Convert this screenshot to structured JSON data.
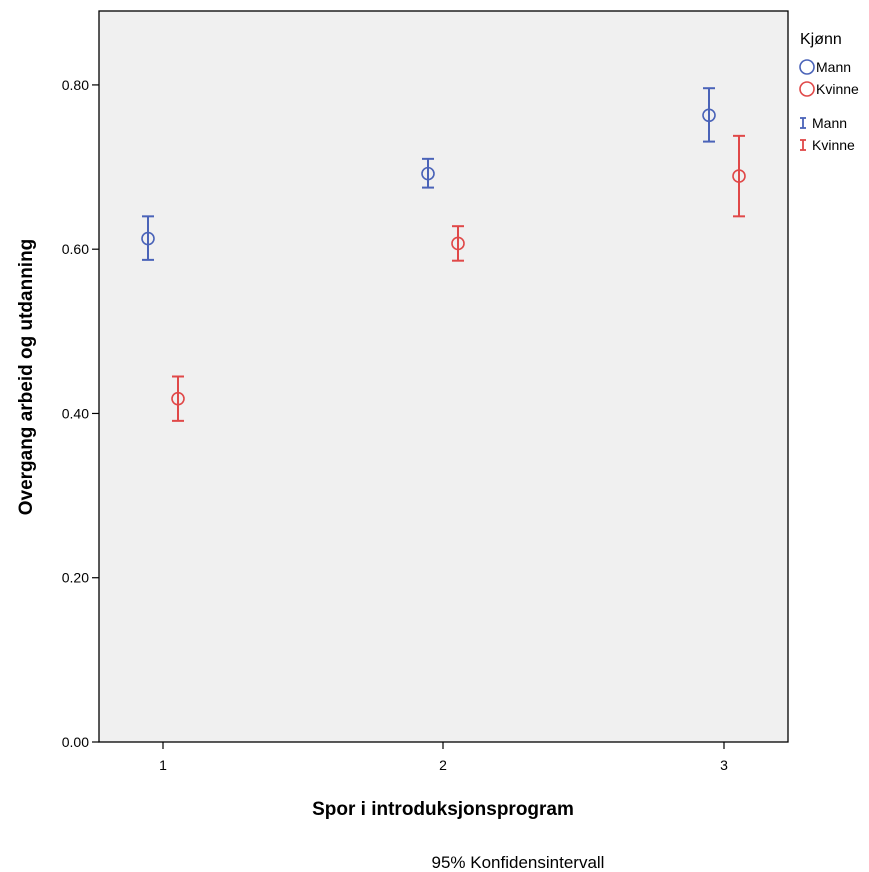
{
  "chart_data": {
    "type": "scatter",
    "subtype": "error-bar",
    "xlabel": "Spor i introduksjonsprogram",
    "ylabel": "Overgang arbeid og utdanning",
    "categories": [
      "1",
      "2",
      "3"
    ],
    "ylim": [
      0,
      0.89
    ],
    "yticks": [
      "0.00",
      "0.20",
      "0.40",
      "0.60",
      "0.80"
    ],
    "grid": false,
    "legend_title": "Kjønn",
    "legend_position": "right",
    "footnote": "95% Konfidensintervall",
    "series": [
      {
        "name": "Mann",
        "color": "#4a63b8",
        "marker_label": "Mann",
        "errorbar_label": "Mann",
        "values": [
          0.613,
          0.692,
          0.763
        ],
        "lower": [
          0.587,
          0.675,
          0.731
        ],
        "upper": [
          0.64,
          0.71,
          0.796
        ]
      },
      {
        "name": "Kvinne",
        "color": "#e04848",
        "marker_label": "Kvinne",
        "errorbar_label": "Kvinne",
        "values": [
          0.418,
          0.607,
          0.689
        ],
        "lower": [
          0.391,
          0.586,
          0.64
        ],
        "upper": [
          0.445,
          0.628,
          0.738
        ]
      }
    ]
  }
}
